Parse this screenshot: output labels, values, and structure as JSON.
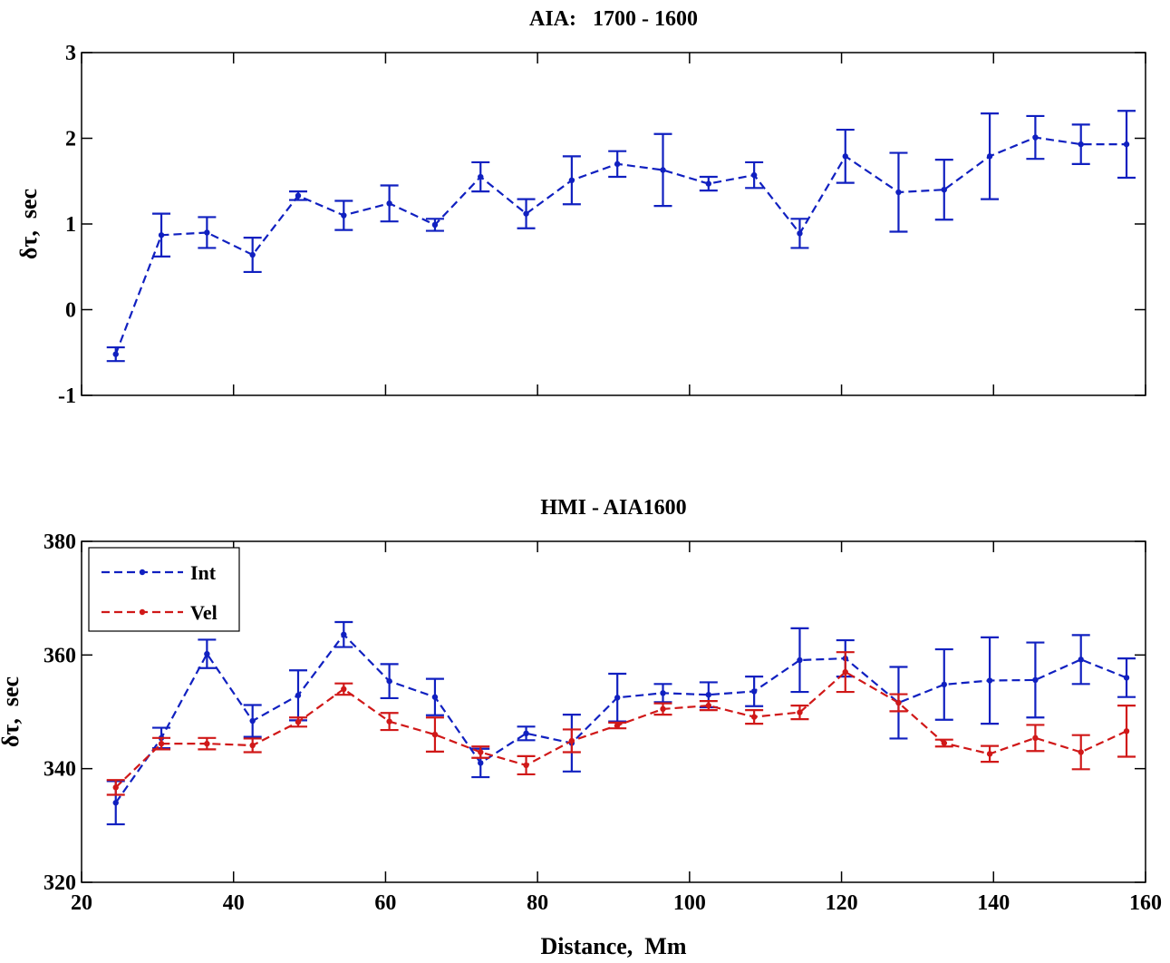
{
  "chart_data": [
    {
      "type": "line",
      "title": "AIA:   1700 - 1600",
      "xlabel": "",
      "ylabel": "δτ,  sec",
      "xlim": [
        20,
        160
      ],
      "ylim": [
        -1,
        3
      ],
      "xticks": [
        20,
        40,
        60,
        80,
        100,
        120,
        140,
        160
      ],
      "yticks": [
        -1,
        0,
        1,
        2,
        3
      ],
      "xtick_labels": [],
      "ytick_labels": [
        "-1",
        "0",
        "1",
        "2",
        "3"
      ],
      "grid": false,
      "legend": null,
      "series": [
        {
          "color": "#1020c0",
          "x": [
            24.5,
            30.5,
            36.5,
            42.5,
            48.5,
            54.5,
            60.5,
            66.5,
            72.5,
            78.5,
            84.5,
            90.5,
            96.5,
            102.5,
            108.5,
            114.5,
            120.5,
            127.5,
            133.5,
            139.5,
            145.5,
            151.5,
            157.5
          ],
          "y": [
            -0.52,
            0.87,
            0.9,
            0.64,
            1.33,
            1.1,
            1.24,
            0.99,
            1.55,
            1.12,
            1.51,
            1.7,
            1.63,
            1.47,
            1.57,
            0.89,
            1.79,
            1.37,
            1.4,
            1.79,
            2.01,
            1.93,
            1.93
          ],
          "err": [
            0.08,
            0.25,
            0.18,
            0.2,
            0.05,
            0.17,
            0.21,
            0.07,
            0.17,
            0.17,
            0.28,
            0.15,
            0.42,
            0.08,
            0.15,
            0.17,
            0.31,
            0.46,
            0.35,
            0.5,
            0.25,
            0.23,
            0.39
          ]
        }
      ]
    },
    {
      "type": "line",
      "title": "HMI - AIA1600",
      "xlabel": "Distance,  Mm",
      "ylabel": "δτ,  sec",
      "xlim": [
        20,
        160
      ],
      "ylim": [
        320,
        380
      ],
      "xticks": [
        20,
        40,
        60,
        80,
        100,
        120,
        140,
        160
      ],
      "yticks": [
        320,
        340,
        360,
        380
      ],
      "xtick_labels": [
        "20",
        "40",
        "60",
        "80",
        "100",
        "120",
        "140",
        "160"
      ],
      "ytick_labels": [
        "320",
        "340",
        "360",
        "380"
      ],
      "grid": false,
      "legend": "top-left",
      "series": [
        {
          "name": "Int",
          "color": "#1020c0",
          "x": [
            24.5,
            30.5,
            36.5,
            42.5,
            48.5,
            54.5,
            60.5,
            66.5,
            72.5,
            78.5,
            84.5,
            90.5,
            96.5,
            102.5,
            108.5,
            114.5,
            120.5,
            127.5,
            133.5,
            139.5,
            145.5,
            151.5,
            157.5
          ],
          "y": [
            334,
            345.4,
            360.2,
            348.4,
            352.9,
            363.6,
            355.4,
            352.6,
            341,
            346.2,
            344.5,
            352.5,
            353.3,
            353,
            353.6,
            359.1,
            359.4,
            351.6,
            354.8,
            355.5,
            355.6,
            359.2,
            356
          ],
          "err": [
            3.8,
            1.8,
            2.5,
            2.8,
            4.4,
            2.2,
            3,
            3.2,
            2.5,
            1.2,
            5,
            4.2,
            1.6,
            2.2,
            2.6,
            5.6,
            3.2,
            6.3,
            6.2,
            7.6,
            6.6,
            4.3,
            3.4
          ]
        },
        {
          "name": "Vel",
          "color": "#d01818",
          "x": [
            24.5,
            30.5,
            36.5,
            42.5,
            48.5,
            54.5,
            60.5,
            66.5,
            72.5,
            78.5,
            84.5,
            90.5,
            96.5,
            102.5,
            108.5,
            114.5,
            120.5,
            127.5,
            133.5,
            139.5,
            145.5,
            151.5,
            157.5
          ],
          "y": [
            336.7,
            344.4,
            344.4,
            344.1,
            348.2,
            354,
            348.3,
            346,
            342.9,
            340.6,
            344.9,
            347.6,
            350.5,
            351.1,
            349.1,
            349.9,
            357,
            351.6,
            344.5,
            342.6,
            345.4,
            342.9,
            346.6
          ],
          "err": [
            1.3,
            1,
            1,
            1.2,
            0.8,
            1,
            1.5,
            3,
            1,
            1.6,
            2,
            0.5,
            1,
            0.8,
            1.2,
            1.2,
            3.5,
            1.5,
            0.6,
            1.4,
            2.3,
            3,
            4.5
          ]
        }
      ]
    }
  ]
}
